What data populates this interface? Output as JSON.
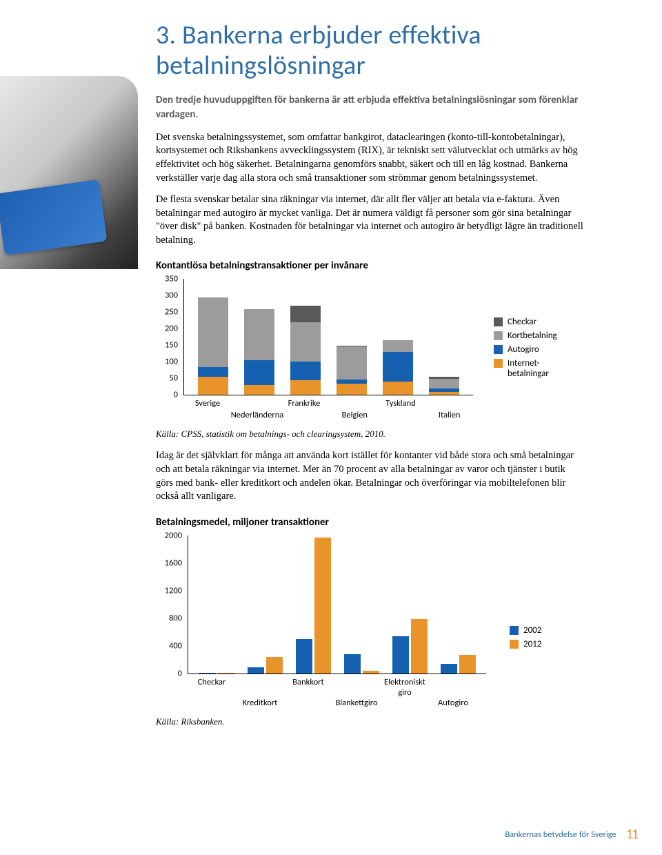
{
  "heading": "3. Bankerna erbjuder effektiva betalningslösningar",
  "intro": "Den tredje huvuduppgiften för bankerna är att erbjuda effektiva betalningslösningar som förenklar vardagen.",
  "para1": "Det svenska betalningssystemet, som omfattar bankgirot, dataclearingen (konto-till-kontobetalningar), kortsystemet och Riksbankens avvecklingssystem (RIX), är tekniskt sett välutvecklat och utmärks av hög effektivitet och hög säkerhet. Betalningarna genomförs snabbt, säkert och till en låg kostnad. Bankerna verkställer varje dag alla stora och små transaktioner som strömmar genom betalningssystemet.",
  "para2": "De flesta svenskar betalar sina räkningar via internet, där allt fler väljer att betala via e-faktura. Även betalningar med autogiro är mycket vanliga. Det är numera väldigt få personer som gör sina betalningar \"över disk\" på banken. Kostnaden för betalningar via internet och autogiro är betydligt lägre än traditionell betalning.",
  "chart1": {
    "title": "Kontantlösa betalningstransaktioner per invånare",
    "ymax": 350,
    "ytick_step": 50,
    "yticks": [
      "350",
      "300",
      "250",
      "200",
      "150",
      "100",
      "50",
      "0"
    ],
    "categories_row1": [
      "Sverige",
      "",
      "Frankrike",
      "",
      "Tyskland",
      ""
    ],
    "categories_row2": [
      "",
      "Nederländerna",
      "",
      "Belgien",
      "",
      "Italien"
    ],
    "colors": {
      "internet": "#e9942b",
      "autogiro": "#1560b0",
      "kort": "#9c9c9c",
      "checkar": "#595959"
    },
    "series": [
      {
        "internet": 55,
        "autogiro": 30,
        "kort": 210,
        "checkar": 0
      },
      {
        "internet": 30,
        "autogiro": 75,
        "kort": 155,
        "checkar": 0
      },
      {
        "internet": 45,
        "autogiro": 55,
        "kort": 120,
        "checkar": 50
      },
      {
        "internet": 35,
        "autogiro": 12,
        "kort": 100,
        "checkar": 2
      },
      {
        "internet": 40,
        "autogiro": 90,
        "kort": 35,
        "checkar": 0
      },
      {
        "internet": 10,
        "autogiro": 10,
        "kort": 28,
        "checkar": 6
      }
    ],
    "legend": [
      {
        "label": "Checkar",
        "color": "#595959"
      },
      {
        "label": "Kortbetalning",
        "color": "#9c9c9c"
      },
      {
        "label": "Autogiro",
        "color": "#1560b0"
      },
      {
        "label": "Internet-\nbetalningar",
        "color": "#e9942b"
      }
    ],
    "source": "Källa: CPSS, statistik om betalnings- och clearingsystem, 2010."
  },
  "para3": "Idag är det självklart för många att använda kort istället för kontanter vid både stora och små betalningar och att betala räkningar via internet. Mer än 70 procent av alla betalningar av varor och tjänster i butik görs med bank- eller kreditkort och andelen ökar. Betalningar och överföringar via mobiltelefonen blir också allt vanligare.",
  "chart2": {
    "title": "Betalningsmedel, miljoner transaktioner",
    "ymax": 2000,
    "ytick_step": 400,
    "yticks": [
      "2000",
      "1600",
      "1200",
      "800",
      "400",
      "0"
    ],
    "colors": {
      "y2002": "#1560b0",
      "y2012": "#e9942b"
    },
    "categories_row1": [
      "Checkar",
      "",
      "Bankkort",
      "",
      "Elektroniskt giro",
      ""
    ],
    "categories_row2": [
      "",
      "Kreditkort",
      "",
      "Blankettgiro",
      "",
      "Autogiro"
    ],
    "series": [
      {
        "y2002": 10,
        "y2012": 5
      },
      {
        "y2002": 90,
        "y2012": 240
      },
      {
        "y2002": 500,
        "y2012": 1970
      },
      {
        "y2002": 280,
        "y2012": 40
      },
      {
        "y2002": 540,
        "y2012": 790
      },
      {
        "y2002": 140,
        "y2012": 270
      }
    ],
    "legend": [
      {
        "label": "2002",
        "color": "#1560b0"
      },
      {
        "label": "2012",
        "color": "#e9942b"
      }
    ],
    "source": "Källa: Riksbanken."
  },
  "footer_text": "Bankernas betydelse för Sverige",
  "footer_page": "11"
}
